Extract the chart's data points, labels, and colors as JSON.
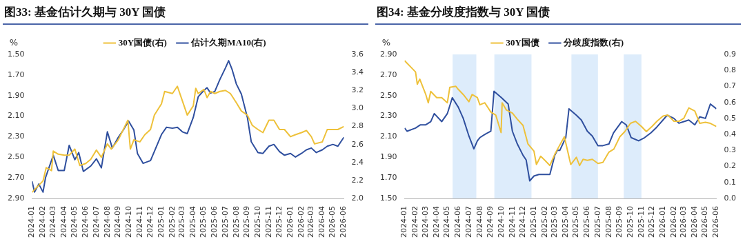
{
  "chart_data": [
    {
      "type": "line",
      "title": "图33: 基金估计久期与 30Y 国债",
      "ylabel": "%",
      "legend": "top",
      "xlim": [
        "2024-01",
        "2026-06"
      ],
      "xticks": [
        "2024-01",
        "2024-02",
        "2024-03",
        "2024-04",
        "2024-05",
        "2024-06",
        "2024-07",
        "2024-08",
        "2024-09",
        "2024-10",
        "2024-11",
        "2024-12",
        "2025-01",
        "2025-02",
        "2025-03",
        "2025-04",
        "2025-05",
        "2025-06",
        "2025-07",
        "2025-08",
        "2025-09",
        "2025-10",
        "2025-11",
        "2025-12",
        "2026-01",
        "2026-02",
        "2026-03",
        "2026-04",
        "2026-05",
        "2026-06"
      ],
      "ylim": [
        2.9,
        1.5
      ],
      "yticks": [
        {
          "value": 1.5,
          "label": "1.50"
        },
        {
          "value": 1.7,
          "label": "1.70"
        },
        {
          "value": 1.9,
          "label": "1.90"
        },
        {
          "value": 2.1,
          "label": "2.10"
        },
        {
          "value": 2.3,
          "label": "2.30"
        },
        {
          "value": 2.5,
          "label": "2.50"
        },
        {
          "value": 2.7,
          "label": "2.70"
        },
        {
          "value": 2.9,
          "label": "2.90"
        }
      ],
      "y2lim": [
        2.0,
        3.6
      ],
      "y2ticks": [
        {
          "value": 2.0,
          "label": "2.0"
        },
        {
          "value": 2.2,
          "label": "2.2"
        },
        {
          "value": 2.4,
          "label": "2.4"
        },
        {
          "value": 2.6,
          "label": "2.6"
        },
        {
          "value": 2.8,
          "label": "2.8"
        },
        {
          "value": 3.0,
          "label": "3.0"
        },
        {
          "value": 3.2,
          "label": "3.2"
        },
        {
          "value": 3.4,
          "label": "3.4"
        },
        {
          "value": 3.6,
          "label": "3.6"
        }
      ],
      "series": [
        {
          "name": "30Y国债(右)",
          "color": "#eec13a",
          "x": [
            "2024-01-01",
            "2024-01-15",
            "2024-02-01",
            "2024-02-10",
            "2024-02-25",
            "2024-03-01",
            "2024-03-15",
            "2024-04-01",
            "2024-04-15",
            "2024-05-01",
            "2024-05-15",
            "2024-06-01",
            "2024-06-15",
            "2024-07-01",
            "2024-07-15",
            "2024-08-01",
            "2024-08-12",
            "2024-09-01",
            "2024-09-15",
            "2024-09-28",
            "2024-10-05",
            "2024-10-15",
            "2024-11-01",
            "2024-11-15",
            "2024-12-01",
            "2024-12-12",
            "2025-01-01",
            "2025-01-10",
            "2025-02-01",
            "2025-02-15",
            "2025-03-01",
            "2025-03-15",
            "2025-04-01",
            "2025-04-08",
            "2025-04-15",
            "2025-05-01",
            "2025-05-10",
            "2025-05-20",
            "2025-06-01",
            "2025-06-15",
            "2025-07-01",
            "2025-07-15",
            "2025-08-01",
            "2025-08-15",
            "2025-09-01",
            "2025-09-15",
            "2025-10-01",
            "2025-10-15",
            "2025-11-01",
            "2025-11-15",
            "2025-12-01",
            "2025-12-15",
            "2026-01-01",
            "2026-01-15",
            "2026-02-01",
            "2026-02-15",
            "2026-03-01",
            "2026-03-10",
            "2026-04-01",
            "2026-04-15",
            "2026-05-01",
            "2026-05-15",
            "2026-06-01"
          ],
          "values": [
            2.84,
            2.79,
            2.73,
            2.6,
            2.63,
            2.44,
            2.47,
            2.48,
            2.48,
            2.42,
            2.58,
            2.56,
            2.52,
            2.43,
            2.5,
            2.37,
            2.42,
            2.33,
            2.23,
            2.14,
            2.42,
            2.33,
            2.35,
            2.28,
            2.23,
            2.09,
            1.98,
            1.86,
            1.88,
            1.81,
            1.95,
            2.09,
            2.0,
            1.83,
            1.88,
            1.84,
            1.92,
            1.86,
            1.88,
            1.86,
            1.85,
            1.88,
            1.97,
            2.05,
            2.09,
            2.19,
            2.23,
            2.26,
            2.14,
            2.14,
            2.23,
            2.23,
            2.3,
            2.28,
            2.26,
            2.24,
            2.3,
            2.37,
            2.35,
            2.23,
            2.23,
            2.23,
            2.2
          ]
        },
        {
          "name": "估计久期MA10(右)",
          "color": "#2f4f9e",
          "axis": "y2",
          "x": [
            "2024-01-01",
            "2024-01-08",
            "2024-01-20",
            "2024-02-01",
            "2024-02-08",
            "2024-03-01",
            "2024-03-15",
            "2024-04-01",
            "2024-04-15",
            "2024-05-01",
            "2024-05-12",
            "2024-05-25",
            "2024-06-15",
            "2024-07-01",
            "2024-07-15",
            "2024-08-01",
            "2024-08-15",
            "2024-09-01",
            "2024-09-15",
            "2024-09-30",
            "2024-10-15",
            "2024-10-25",
            "2024-11-10",
            "2024-12-01",
            "2024-12-15",
            "2025-01-01",
            "2025-01-15",
            "2025-02-01",
            "2025-02-15",
            "2025-03-01",
            "2025-03-15",
            "2025-04-01",
            "2025-04-15",
            "2025-05-01",
            "2025-05-10",
            "2025-05-20",
            "2025-06-01",
            "2025-06-15",
            "2025-07-01",
            "2025-07-10",
            "2025-07-20",
            "2025-08-01",
            "2025-08-15",
            "2025-09-01",
            "2025-09-12",
            "2025-10-01",
            "2025-10-15",
            "2025-11-01",
            "2025-11-15",
            "2025-12-01",
            "2025-12-15",
            "2026-01-01",
            "2026-01-15",
            "2026-02-01",
            "2026-02-15",
            "2026-03-01",
            "2026-03-15",
            "2026-04-01",
            "2026-04-15",
            "2026-05-01",
            "2026-05-15",
            "2026-06-01"
          ],
          "values": [
            2.19,
            2.07,
            2.16,
            2.07,
            2.23,
            2.48,
            2.31,
            2.31,
            2.59,
            2.43,
            2.51,
            2.3,
            2.36,
            2.44,
            2.34,
            2.74,
            2.56,
            2.68,
            2.76,
            2.86,
            2.76,
            2.5,
            2.39,
            2.42,
            2.55,
            2.71,
            2.79,
            2.78,
            2.79,
            2.74,
            2.72,
            2.9,
            3.13,
            3.2,
            3.23,
            3.17,
            3.19,
            3.32,
            3.45,
            3.53,
            3.43,
            3.27,
            3.16,
            2.9,
            2.63,
            2.51,
            2.5,
            2.58,
            2.6,
            2.52,
            2.48,
            2.5,
            2.46,
            2.5,
            2.54,
            2.56,
            2.51,
            2.54,
            2.58,
            2.6,
            2.58,
            2.68
          ]
        }
      ]
    },
    {
      "type": "line",
      "title": "图34: 基金分歧度指数与 30Y 国债",
      "ylabel": "%",
      "legend": "top",
      "xlim": [
        "2024-01",
        "2026-06"
      ],
      "xticks": [
        "2024-01",
        "2024-02",
        "2024-03",
        "2024-04",
        "2024-05",
        "2024-06",
        "2024-07",
        "2024-08",
        "2024-09",
        "2024-10",
        "2024-11",
        "2024-12",
        "2025-01",
        "2025-02",
        "2025-03",
        "2025-04",
        "2025-05",
        "2025-06",
        "2025-07",
        "2025-08",
        "2025-09",
        "2025-10",
        "2025-11",
        "2025-12",
        "2026-01",
        "2026-02",
        "2026-03",
        "2026-04",
        "2026-05",
        "2026-06"
      ],
      "ylim": [
        1.5,
        2.9
      ],
      "yticks": [
        {
          "value": 1.5,
          "label": "1.50"
        },
        {
          "value": 1.7,
          "label": "1.70"
        },
        {
          "value": 1.9,
          "label": "1.90"
        },
        {
          "value": 2.1,
          "label": "2.10"
        },
        {
          "value": 2.3,
          "label": "2.30"
        },
        {
          "value": 2.5,
          "label": "2.50"
        },
        {
          "value": 2.7,
          "label": "2.70"
        },
        {
          "value": 2.9,
          "label": "2.90"
        }
      ],
      "y2lim": [
        0,
        0.9
      ],
      "y2ticks": [
        {
          "value": 0,
          "label": "0.0"
        },
        {
          "value": 0.1,
          "label": "0.1"
        },
        {
          "value": 0.2,
          "label": "0.2"
        },
        {
          "value": 0.3,
          "label": "0.3"
        },
        {
          "value": 0.4,
          "label": "0.4"
        },
        {
          "value": 0.5,
          "label": "0.5"
        },
        {
          "value": 0.6,
          "label": "0.6"
        },
        {
          "value": 0.7,
          "label": "0.7"
        },
        {
          "value": 0.8,
          "label": "0.8"
        },
        {
          "value": 0.9,
          "label": "0.9"
        }
      ],
      "bands": [
        {
          "axis": "x",
          "from": "2024-05-16",
          "to": "2024-07-22",
          "color": "#ddecfb"
        },
        {
          "axis": "x",
          "from": "2024-09-11",
          "to": "2024-12-25",
          "color": "#ddecfb"
        },
        {
          "axis": "x",
          "from": "2025-04-17",
          "to": "2025-07-01",
          "color": "#ddecfb"
        },
        {
          "axis": "x",
          "from": "2025-09-12",
          "to": "2025-11-01",
          "color": "#ddecfb"
        }
      ],
      "series": [
        {
          "name": "30Y国债",
          "color": "#eec13a",
          "x": [
            "2024-01-01",
            "2024-01-15",
            "2024-02-01",
            "2024-02-06",
            "2024-02-13",
            "2024-03-01",
            "2024-03-08",
            "2024-03-15",
            "2024-04-01",
            "2024-04-15",
            "2024-05-01",
            "2024-05-08",
            "2024-05-25",
            "2024-06-01",
            "2024-06-15",
            "2024-07-01",
            "2024-07-10",
            "2024-07-25",
            "2024-08-01",
            "2024-08-15",
            "2024-09-01",
            "2024-09-15",
            "2024-09-30",
            "2024-10-03",
            "2024-10-15",
            "2024-11-01",
            "2024-11-15",
            "2024-12-01",
            "2024-12-15",
            "2025-01-01",
            "2025-01-08",
            "2025-01-20",
            "2025-02-01",
            "2025-02-15",
            "2025-03-01",
            "2025-03-12",
            "2025-03-28",
            "2025-04-15",
            "2025-05-01",
            "2025-05-10",
            "2025-05-20",
            "2025-06-01",
            "2025-06-15",
            "2025-07-01",
            "2025-07-15",
            "2025-08-01",
            "2025-08-15",
            "2025-09-01",
            "2025-09-15",
            "2025-10-01",
            "2025-10-15",
            "2025-11-01",
            "2025-11-15",
            "2025-12-01",
            "2025-12-15",
            "2026-01-01",
            "2026-01-15",
            "2026-02-01",
            "2026-02-15",
            "2026-03-01",
            "2026-03-15",
            "2026-04-01",
            "2026-04-15",
            "2026-05-01",
            "2026-05-15",
            "2026-06-01"
          ],
          "values": [
            2.84,
            2.79,
            2.73,
            2.61,
            2.66,
            2.51,
            2.43,
            2.54,
            2.48,
            2.48,
            2.43,
            2.58,
            2.59,
            2.56,
            2.51,
            2.44,
            2.51,
            2.48,
            2.41,
            2.43,
            2.34,
            2.31,
            2.14,
            2.43,
            2.36,
            2.33,
            2.27,
            2.21,
            2.03,
            1.96,
            1.83,
            1.91,
            1.87,
            1.82,
            1.93,
            2.0,
            2.1,
            1.83,
            1.9,
            1.82,
            1.88,
            1.87,
            1.88,
            1.84,
            1.85,
            1.95,
            1.98,
            2.1,
            2.15,
            2.23,
            2.25,
            2.2,
            2.15,
            2.2,
            2.25,
            2.3,
            2.31,
            2.25,
            2.25,
            2.28,
            2.38,
            2.35,
            2.23,
            2.24,
            2.23,
            2.2
          ]
        },
        {
          "name": "分歧度指数(右)",
          "color": "#2f4f9e",
          "axis": "y2",
          "x": [
            "2024-01-01",
            "2024-01-08",
            "2024-02-01",
            "2024-02-15",
            "2024-03-01",
            "2024-03-15",
            "2024-03-25",
            "2024-04-15",
            "2024-05-01",
            "2024-05-15",
            "2024-06-01",
            "2024-06-15",
            "2024-07-01",
            "2024-07-15",
            "2024-07-25",
            "2024-08-01",
            "2024-08-15",
            "2024-09-01",
            "2024-09-10",
            "2024-10-01",
            "2024-10-20",
            "2024-11-01",
            "2024-11-15",
            "2024-12-01",
            "2024-12-10",
            "2024-12-20",
            "2025-01-01",
            "2025-01-15",
            "2025-02-01",
            "2025-02-15",
            "2025-03-01",
            "2025-03-08",
            "2025-03-15",
            "2025-04-01",
            "2025-04-10",
            "2025-05-01",
            "2025-05-15",
            "2025-06-01",
            "2025-06-15",
            "2025-07-01",
            "2025-07-15",
            "2025-08-01",
            "2025-08-14",
            "2025-09-06",
            "2025-09-19",
            "2025-10-03",
            "2025-10-24",
            "2025-11-10",
            "2025-11-28",
            "2025-12-12",
            "2026-01-13",
            "2026-02-01",
            "2026-02-15",
            "2026-03-01",
            "2026-03-15",
            "2026-04-01",
            "2026-04-15",
            "2026-05-01",
            "2026-05-15",
            "2026-06-01"
          ],
          "values": [
            0.44,
            0.42,
            0.44,
            0.46,
            0.46,
            0.48,
            0.53,
            0.48,
            0.53,
            0.63,
            0.57,
            0.5,
            0.39,
            0.31,
            0.36,
            0.38,
            0.4,
            0.42,
            0.67,
            0.63,
            0.59,
            0.42,
            0.34,
            0.27,
            0.24,
            0.11,
            0.14,
            0.15,
            0.15,
            0.15,
            0.27,
            0.3,
            0.3,
            0.38,
            0.56,
            0.52,
            0.49,
            0.42,
            0.39,
            0.33,
            0.33,
            0.34,
            0.41,
            0.48,
            0.46,
            0.38,
            0.36,
            0.38,
            0.41,
            0.44,
            0.52,
            0.5,
            0.47,
            0.48,
            0.49,
            0.46,
            0.51,
            0.5,
            0.59,
            0.56
          ]
        }
      ]
    }
  ]
}
